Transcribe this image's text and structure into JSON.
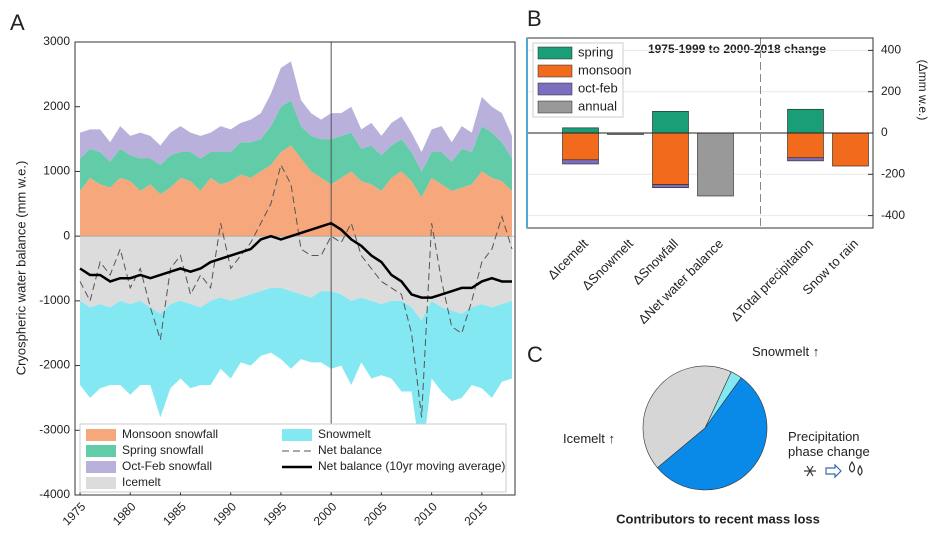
{
  "chart_data": [
    {
      "type": "stacked-area",
      "panel": "A",
      "ylabel": "Cryospheric water balance (mm w.e.)",
      "x": [
        1975,
        1976,
        1977,
        1978,
        1979,
        1980,
        1981,
        1982,
        1983,
        1984,
        1985,
        1986,
        1987,
        1988,
        1989,
        1990,
        1991,
        1992,
        1993,
        1994,
        1995,
        1996,
        1997,
        1998,
        1999,
        2000,
        2001,
        2002,
        2003,
        2004,
        2005,
        2006,
        2007,
        2008,
        2009,
        2010,
        2011,
        2012,
        2013,
        2014,
        2015,
        2016,
        2017,
        2018
      ],
      "xlim": [
        1974.5,
        2018.3
      ],
      "xticks": [
        1975,
        1980,
        1985,
        1990,
        1995,
        2000,
        2005,
        2010,
        2015
      ],
      "ylim": [
        -4000,
        3000
      ],
      "yticks": [
        -4000,
        -3000,
        -2000,
        -1000,
        0,
        1000,
        2000,
        3000
      ],
      "vline": 2000,
      "series": [
        {
          "name": "Monsoon snowfall",
          "kind": "area",
          "color": "#f6a77c",
          "values": [
            700,
            900,
            800,
            750,
            900,
            850,
            700,
            800,
            650,
            750,
            900,
            850,
            700,
            900,
            800,
            850,
            950,
            900,
            1000,
            1100,
            1300,
            1400,
            1200,
            1000,
            900,
            800,
            900,
            1000,
            850,
            800,
            700,
            900,
            1000,
            850,
            600,
            900,
            800,
            700,
            750,
            800,
            1000,
            900,
            850,
            700
          ]
        },
        {
          "name": "Spring snowfall",
          "kind": "area",
          "color": "#62cba8",
          "values": [
            500,
            450,
            500,
            400,
            450,
            400,
            500,
            400,
            450,
            500,
            400,
            450,
            500,
            400,
            500,
            450,
            500,
            550,
            500,
            600,
            700,
            700,
            500,
            550,
            600,
            700,
            650,
            600,
            500,
            600,
            550,
            500,
            500,
            450,
            400,
            400,
            500,
            450,
            600,
            500,
            700,
            700,
            600,
            500
          ]
        },
        {
          "name": "Oct-Feb snowfall",
          "kind": "area",
          "color": "#b9b1dc",
          "values": [
            400,
            300,
            350,
            300,
            350,
            300,
            400,
            350,
            300,
            350,
            400,
            300,
            350,
            300,
            400,
            350,
            300,
            350,
            400,
            500,
            600,
            600,
            400,
            350,
            300,
            400,
            350,
            400,
            300,
            350,
            300,
            350,
            350,
            300,
            300,
            350,
            400,
            300,
            350,
            300,
            450,
            400,
            450,
            350
          ]
        },
        {
          "name": "Icemelt",
          "kind": "area",
          "color": "#dcdcdc",
          "values": [
            -1000,
            -1100,
            -1050,
            -1100,
            -1000,
            -1050,
            -1000,
            -1100,
            -1200,
            -1050,
            -1000,
            -1050,
            -1100,
            -1000,
            -950,
            -1000,
            -950,
            -900,
            -850,
            -800,
            -800,
            -850,
            -900,
            -950,
            -850,
            -850,
            -900,
            -1000,
            -950,
            -1000,
            -1050,
            -1000,
            -1000,
            -1100,
            -1300,
            -1000,
            -1100,
            -1150,
            -1200,
            -1100,
            -1050,
            -1100,
            -1050,
            -1000
          ]
        },
        {
          "name": "Snowmelt",
          "kind": "area",
          "color": "#84e8f2",
          "values": [
            -1300,
            -1400,
            -1300,
            -1200,
            -1300,
            -1400,
            -1300,
            -1200,
            -1600,
            -1300,
            -1200,
            -1300,
            -1200,
            -1300,
            -1100,
            -1200,
            -1000,
            -1100,
            -1000,
            -1000,
            -1100,
            -1200,
            -1000,
            -1000,
            -1100,
            -1200,
            -1100,
            -1300,
            -1000,
            -1200,
            -1100,
            -1200,
            -1400,
            -1300,
            -2200,
            -1200,
            -1300,
            -1400,
            -1300,
            -1200,
            -1300,
            -1400,
            -1200,
            -1200
          ]
        },
        {
          "name": "Net balance",
          "kind": "line",
          "dash": true,
          "color": "#555555",
          "values": [
            -700,
            -1000,
            -400,
            -600,
            -200,
            -800,
            -500,
            -1100,
            -1600,
            -500,
            -300,
            -900,
            -600,
            -800,
            200,
            -500,
            -300,
            -100,
            200,
            500,
            1100,
            800,
            -200,
            -300,
            -300,
            0,
            -100,
            200,
            -300,
            -500,
            -700,
            -800,
            -900,
            -1500,
            -2800,
            200,
            -700,
            -1400,
            -1500,
            -1000,
            -400,
            -200,
            300,
            -200
          ]
        },
        {
          "name": "Net balance (10yr moving average)",
          "kind": "line",
          "dash": false,
          "color": "#000000",
          "values": [
            -500,
            -600,
            -600,
            -700,
            -650,
            -650,
            -600,
            -650,
            -600,
            -550,
            -500,
            -550,
            -500,
            -400,
            -350,
            -300,
            -250,
            -200,
            -50,
            0,
            -50,
            0,
            50,
            100,
            150,
            200,
            100,
            -50,
            -150,
            -300,
            -400,
            -600,
            -700,
            -900,
            -950,
            -950,
            -900,
            -850,
            -800,
            -800,
            -700,
            -650,
            -700,
            -700
          ]
        }
      ]
    },
    {
      "type": "stacked-bar",
      "panel": "B",
      "title": "1975-1999 to 2000-2018 change",
      "ylabel": "(Δmm w.e.)",
      "categories": [
        "ΔIcemelt",
        "ΔSnowmelt",
        "ΔSnowfall",
        "ΔNet water balance",
        null,
        "ΔTotal precipitation",
        "Snow to rain"
      ],
      "ylim": [
        -460,
        460
      ],
      "yticks": [
        -400,
        -200,
        0,
        200,
        400
      ],
      "grid": true,
      "series": [
        {
          "name": "spring",
          "color": "#1a9e77",
          "values": [
            25,
            null,
            105,
            null,
            null,
            115,
            null
          ]
        },
        {
          "name": "monsoon",
          "color": "#f26b1d",
          "values": [
            -130,
            null,
            -250,
            null,
            null,
            -120,
            -160
          ]
        },
        {
          "name": "oct-feb",
          "color": "#7c6fbf",
          "values": [
            -20,
            null,
            -15,
            null,
            null,
            -15,
            null
          ]
        },
        {
          "name": "annual",
          "color": "#999999",
          "values": [
            null,
            -5,
            null,
            -305,
            null,
            null,
            null
          ]
        }
      ]
    },
    {
      "type": "pie",
      "panel": "C",
      "title": "Contributors to recent mass loss",
      "categories": [
        "Snowmelt ↑",
        "Precipitation phase change",
        "Icemelt ↑"
      ],
      "values": [
        3,
        54,
        43
      ],
      "colors": [
        "#84e8f2",
        "#0a8ae8",
        "#d6d6d6"
      ]
    }
  ]
}
